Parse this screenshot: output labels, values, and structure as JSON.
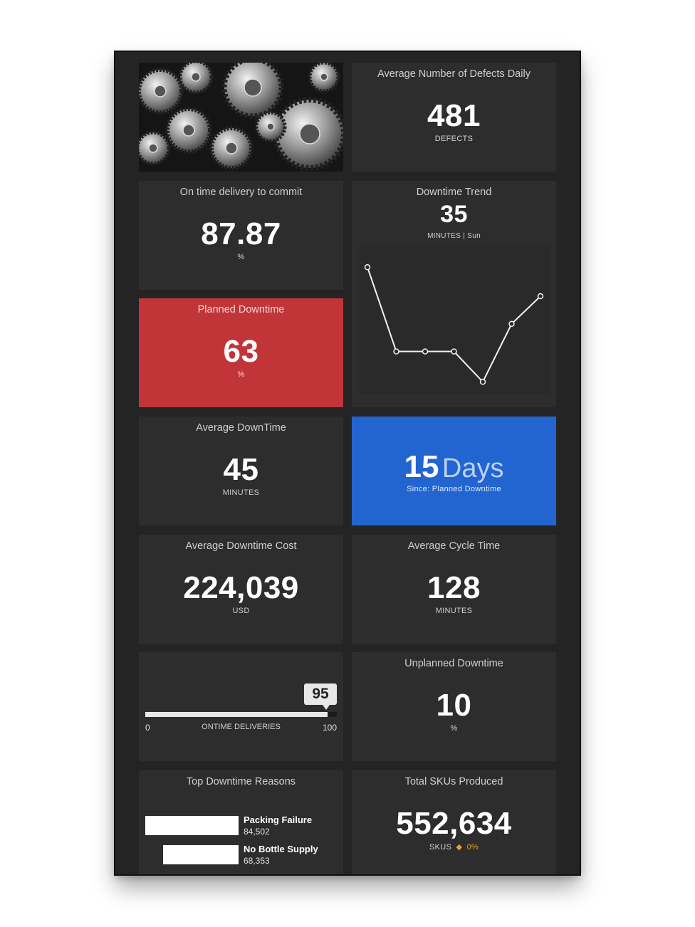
{
  "tiles": {
    "defects": {
      "title": "Average Number of Defects Daily",
      "value": "481",
      "unit": "DEFECTS"
    },
    "ontime_delivery": {
      "title": "On time delivery to commit",
      "value": "87.87",
      "unit": "%"
    },
    "downtime_trend": {
      "title": "Downtime Trend",
      "value": "35",
      "unit": "MINUTES",
      "day": "| Sun"
    },
    "planned_downtime": {
      "title": "Planned Downtime",
      "value": "63",
      "unit": "%",
      "color": "#c13538"
    },
    "average_downtime": {
      "title": "Average DownTime",
      "value": "45",
      "unit": "MINUTES"
    },
    "days_since": {
      "value": "15",
      "word": "Days",
      "caption": "Since: Planned Downtime",
      "color": "#2265d1"
    },
    "downtime_cost": {
      "title": "Average Downtime Cost",
      "value": "224,039",
      "unit": "USD"
    },
    "cycle_time": {
      "title": "Average Cycle Time",
      "value": "128",
      "unit": "MINUTES"
    },
    "ontime_gauge": {
      "value": "95",
      "fraction": 0.95,
      "min": "0",
      "max": "100",
      "label": "ONTIME DELIVERIES"
    },
    "unplanned_downtime": {
      "title": "Unplanned Downtime",
      "value": "10",
      "unit": "%"
    },
    "top_reasons": {
      "title": "Top Downtime Reasons",
      "items": [
        {
          "label": "Packing Failure",
          "value": "84,502",
          "amount": 84502
        },
        {
          "label": "No Bottle Supply",
          "value": "68,353",
          "amount": 68353
        }
      ]
    },
    "total_skus": {
      "title": "Total SKUs Produced",
      "value": "552,634",
      "unit": "SKUS",
      "change_icon": "diamond-icon",
      "change": "0%",
      "change_color": "#f0a020"
    }
  },
  "chart_data": {
    "type": "line",
    "values": [
      88,
      27,
      27,
      27,
      5,
      47,
      67
    ],
    "ylim": [
      0,
      100
    ],
    "grid": false
  }
}
